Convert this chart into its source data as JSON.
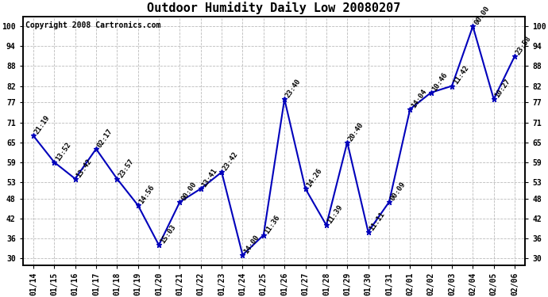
{
  "title": "Outdoor Humidity Daily Low 20080207",
  "copyright": "Copyright 2008 Cartronics.com",
  "dates": [
    "01/14",
    "01/15",
    "01/16",
    "01/17",
    "01/18",
    "01/19",
    "01/20",
    "01/21",
    "01/22",
    "01/23",
    "01/24",
    "01/25",
    "01/26",
    "01/27",
    "01/28",
    "01/29",
    "01/30",
    "01/31",
    "02/01",
    "02/02",
    "02/03",
    "02/04",
    "02/05",
    "02/06"
  ],
  "values": [
    67,
    59,
    54,
    63,
    54,
    46,
    34,
    47,
    51,
    56,
    31,
    37,
    78,
    51,
    40,
    65,
    38,
    47,
    75,
    80,
    82,
    100,
    78,
    91
  ],
  "labels": [
    "21:19",
    "13:52",
    "13:42",
    "02:17",
    "23:57",
    "14:56",
    "15:03",
    "00:00",
    "13:41",
    "23:42",
    "14:00",
    "11:36",
    "23:40",
    "14:26",
    "11:39",
    "20:40",
    "11:11",
    "00:09",
    "14:04",
    "10:46",
    "11:42",
    "00:00",
    "10:27",
    "23:58"
  ],
  "line_color": "#0000bb",
  "marker_color": "#0000bb",
  "background_color": "#ffffff",
  "grid_color": "#bbbbbb",
  "ylim": [
    28,
    103
  ],
  "yticks": [
    30,
    36,
    42,
    48,
    53,
    59,
    65,
    71,
    77,
    82,
    88,
    94,
    100
  ],
  "title_fontsize": 11,
  "label_fontsize": 6.5,
  "copyright_fontsize": 7,
  "tick_fontsize": 7,
  "marker_size": 5
}
